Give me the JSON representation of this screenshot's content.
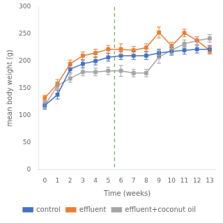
{
  "chart_data": {
    "type": "line",
    "x": [
      0,
      1,
      2,
      3,
      4,
      5,
      6,
      7,
      8,
      9,
      10,
      11,
      12,
      13
    ],
    "series": [
      {
        "name": "control",
        "color": "#4472C4",
        "values": [
          118,
          138,
          185,
          195,
          200,
          207,
          210,
          210,
          210,
          215,
          218,
          220,
          222,
          222
        ],
        "errors": [
          7,
          8,
          7,
          7,
          7,
          7,
          7,
          7,
          7,
          7,
          7,
          7,
          7,
          7
        ]
      },
      {
        "name": "effluent",
        "color": "#ED7D31",
        "values": [
          132,
          158,
          195,
          210,
          215,
          222,
          222,
          220,
          225,
          253,
          228,
          252,
          238,
          220
        ],
        "errors": [
          5,
          8,
          7,
          7,
          7,
          7,
          10,
          7,
          7,
          10,
          7,
          7,
          7,
          7
        ]
      },
      {
        "name": "effluent+coconut oil",
        "color": "#A5A5A5",
        "values": [
          118,
          155,
          168,
          180,
          180,
          182,
          182,
          178,
          178,
          208,
          220,
          232,
          238,
          242
        ],
        "errors": [
          5,
          7,
          7,
          7,
          7,
          7,
          10,
          7,
          7,
          12,
          7,
          7,
          7,
          7
        ]
      }
    ],
    "xlabel": "Time (weeks)",
    "ylabel": "mean body weight (g)",
    "xlim": [
      -0.5,
      13.5
    ],
    "xticks": [
      0,
      1,
      2,
      3,
      4,
      5,
      6,
      7,
      8,
      9,
      10,
      11,
      12,
      13
    ],
    "ylim": [
      0,
      300
    ],
    "yticks": [
      0,
      50,
      100,
      150,
      200,
      250,
      300
    ],
    "marker": "square",
    "grid": false,
    "legend": "bottom",
    "annotations": [
      {
        "type": "vline",
        "x": 5.5,
        "color": "#70AD47",
        "line_style": "dashed"
      }
    ]
  }
}
